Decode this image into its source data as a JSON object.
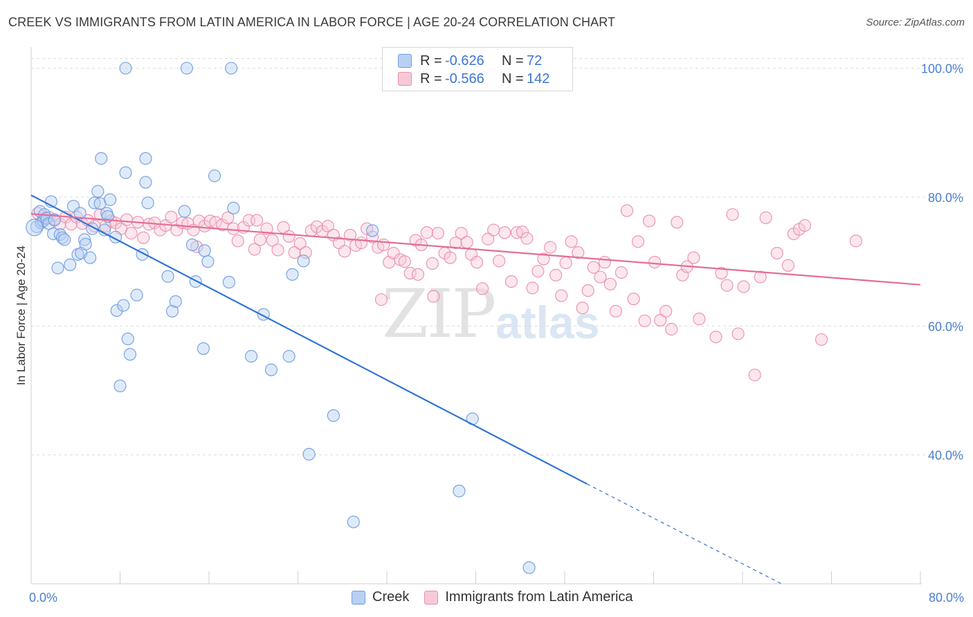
{
  "title": "CREEK VS IMMIGRANTS FROM LATIN AMERICA IN LABOR FORCE | AGE 20-24 CORRELATION CHART",
  "source": "Source: ZipAtlas.com",
  "watermark": {
    "zip": "ZIP",
    "atlas": "atlas"
  },
  "colors": {
    "creek": "#6f9de3",
    "creek_fill": "#b9d0f2",
    "latin": "#ea8fac",
    "latin_fill": "#f7c9d8",
    "trend_creek": "#2f72d6",
    "trend_latin": "#e36d97",
    "accent_text": "#3b74d6"
  },
  "legend": {
    "rows": [
      {
        "series": "Creek",
        "r_label": "R =",
        "r_value": "-0.626",
        "n_label": "N =",
        "n_value": "72"
      },
      {
        "series": "Immigrants from Latin America",
        "r_label": "R =",
        "r_value": "-0.566",
        "n_label": "N =",
        "n_value": "142"
      }
    ]
  },
  "bottom_legend": [
    "Creek",
    "Immigrants from Latin America"
  ],
  "chart_data": {
    "type": "scatter",
    "title": "CREEK VS IMMIGRANTS FROM LATIN AMERICA IN LABOR FORCE | AGE 20-24 CORRELATION CHART",
    "xlabel": "",
    "ylabel": "In Labor Force | Age 20-24",
    "xlim": [
      0,
      80
    ],
    "ylim": [
      20,
      102
    ],
    "x_tick_labels": [
      "0.0%",
      "80.0%"
    ],
    "y_ticks": [
      40,
      60,
      80,
      100
    ],
    "y_tick_labels": [
      "40.0%",
      "60.0%",
      "80.0%",
      "100.0%"
    ],
    "grid": true,
    "legend_position": "top-center",
    "series": [
      {
        "name": "Creek",
        "points": [
          [
            0.5,
            75.4
          ],
          [
            0.8,
            77.8
          ],
          [
            0.9,
            76.0
          ],
          [
            1.1,
            76.3
          ],
          [
            1.2,
            77.3
          ],
          [
            1.4,
            76.7
          ],
          [
            1.6,
            75.9
          ],
          [
            1.8,
            79.3
          ],
          [
            2.0,
            74.3
          ],
          [
            2.1,
            76.5
          ],
          [
            2.4,
            69.0
          ],
          [
            2.6,
            74.2
          ],
          [
            2.8,
            73.7
          ],
          [
            3.0,
            73.4
          ],
          [
            3.5,
            69.5
          ],
          [
            3.8,
            78.6
          ],
          [
            4.2,
            71.1
          ],
          [
            4.4,
            77.5
          ],
          [
            4.5,
            71.3
          ],
          [
            4.8,
            73.4
          ],
          [
            4.9,
            72.7
          ],
          [
            5.3,
            70.6
          ],
          [
            5.5,
            75.1
          ],
          [
            5.7,
            79.1
          ],
          [
            6.0,
            80.9
          ],
          [
            6.2,
            79.0
          ],
          [
            6.3,
            86.0
          ],
          [
            6.6,
            74.9
          ],
          [
            6.8,
            77.5
          ],
          [
            6.9,
            77.0
          ],
          [
            7.1,
            79.6
          ],
          [
            7.6,
            73.8
          ],
          [
            7.7,
            62.4
          ],
          [
            8.0,
            50.7
          ],
          [
            8.3,
            63.2
          ],
          [
            8.5,
            83.8
          ],
          [
            8.7,
            58.0
          ],
          [
            8.9,
            55.6
          ],
          [
            9.5,
            64.8
          ],
          [
            10.0,
            71.1
          ],
          [
            10.3,
            86.0
          ],
          [
            10.3,
            82.3
          ],
          [
            10.5,
            79.1
          ],
          [
            12.3,
            67.7
          ],
          [
            12.7,
            62.3
          ],
          [
            13.0,
            63.8
          ],
          [
            13.8,
            77.8
          ],
          [
            14.5,
            72.6
          ],
          [
            14.8,
            66.9
          ],
          [
            15.5,
            56.5
          ],
          [
            15.6,
            71.7
          ],
          [
            15.9,
            70.0
          ],
          [
            16.5,
            83.3
          ],
          [
            17.8,
            66.8
          ],
          [
            18.2,
            78.3
          ],
          [
            19.8,
            55.3
          ],
          [
            20.9,
            61.8
          ],
          [
            21.6,
            53.2
          ],
          [
            23.2,
            55.3
          ],
          [
            23.5,
            68.0
          ],
          [
            24.5,
            70.1
          ],
          [
            25.0,
            40.1
          ],
          [
            27.2,
            46.1
          ],
          [
            29.0,
            29.6
          ],
          [
            30.7,
            74.8
          ],
          [
            38.5,
            34.4
          ],
          [
            39.7,
            45.6
          ],
          [
            44.8,
            22.5
          ],
          [
            8.5,
            100
          ],
          [
            14.0,
            100
          ],
          [
            18.0,
            100
          ],
          [
            0.3,
            75.3
          ]
        ]
      },
      {
        "name": "Immigrants from Latin America",
        "points": [
          [
            0.6,
            77.5
          ],
          [
            1.0,
            76.2
          ],
          [
            1.3,
            76.8
          ],
          [
            1.6,
            76.9
          ],
          [
            2.1,
            76.4
          ],
          [
            2.6,
            75.8
          ],
          [
            3.1,
            76.9
          ],
          [
            3.6,
            75.8
          ],
          [
            4.1,
            76.9
          ],
          [
            4.6,
            75.9
          ],
          [
            5.1,
            76.4
          ],
          [
            5.7,
            75.5
          ],
          [
            6.2,
            77.3
          ],
          [
            6.7,
            75.5
          ],
          [
            7.2,
            76.3
          ],
          [
            7.6,
            76.0
          ],
          [
            8.1,
            75.1
          ],
          [
            8.6,
            76.5
          ],
          [
            9.0,
            74.4
          ],
          [
            9.6,
            76.1
          ],
          [
            10.1,
            73.7
          ],
          [
            10.6,
            75.8
          ],
          [
            11.1,
            76.0
          ],
          [
            11.6,
            74.9
          ],
          [
            12.1,
            75.6
          ],
          [
            12.6,
            76.9
          ],
          [
            13.1,
            74.9
          ],
          [
            13.6,
            76.0
          ],
          [
            14.1,
            75.9
          ],
          [
            14.6,
            74.9
          ],
          [
            15.1,
            76.3
          ],
          [
            15.6,
            75.5
          ],
          [
            16.1,
            76.3
          ],
          [
            16.6,
            76.1
          ],
          [
            17.2,
            75.7
          ],
          [
            17.7,
            76.8
          ],
          [
            18.2,
            75.1
          ],
          [
            18.6,
            73.2
          ],
          [
            19.1,
            75.3
          ],
          [
            19.6,
            76.4
          ],
          [
            20.1,
            71.9
          ],
          [
            20.6,
            73.4
          ],
          [
            21.2,
            75.1
          ],
          [
            21.7,
            73.3
          ],
          [
            22.2,
            71.8
          ],
          [
            22.7,
            75.3
          ],
          [
            23.2,
            73.9
          ],
          [
            23.7,
            71.4
          ],
          [
            24.2,
            72.8
          ],
          [
            24.7,
            71.4
          ],
          [
            25.2,
            74.8
          ],
          [
            25.7,
            75.4
          ],
          [
            26.2,
            74.7
          ],
          [
            26.7,
            75.5
          ],
          [
            27.2,
            74.1
          ],
          [
            27.7,
            72.9
          ],
          [
            28.2,
            71.6
          ],
          [
            28.7,
            74.1
          ],
          [
            29.2,
            72.5
          ],
          [
            29.7,
            72.9
          ],
          [
            30.2,
            75.1
          ],
          [
            30.7,
            73.8
          ],
          [
            31.2,
            72.2
          ],
          [
            31.7,
            72.6
          ],
          [
            32.2,
            69.9
          ],
          [
            32.6,
            71.3
          ],
          [
            33.2,
            70.3
          ],
          [
            33.6,
            70.0
          ],
          [
            34.1,
            68.2
          ],
          [
            34.6,
            73.3
          ],
          [
            35.1,
            72.6
          ],
          [
            35.6,
            74.5
          ],
          [
            36.1,
            69.7
          ],
          [
            36.6,
            74.4
          ],
          [
            37.2,
            71.3
          ],
          [
            37.7,
            70.6
          ],
          [
            38.2,
            72.9
          ],
          [
            38.7,
            74.4
          ],
          [
            39.2,
            73.0
          ],
          [
            39.6,
            71.1
          ],
          [
            40.1,
            69.9
          ],
          [
            40.6,
            65.8
          ],
          [
            41.1,
            73.5
          ],
          [
            41.6,
            74.9
          ],
          [
            42.1,
            70.1
          ],
          [
            42.6,
            74.5
          ],
          [
            43.2,
            66.9
          ],
          [
            43.7,
            74.5
          ],
          [
            44.2,
            74.6
          ],
          [
            44.6,
            73.6
          ],
          [
            45.1,
            65.9
          ],
          [
            45.6,
            68.5
          ],
          [
            46.1,
            70.4
          ],
          [
            46.7,
            72.2
          ],
          [
            47.2,
            67.9
          ],
          [
            47.7,
            64.7
          ],
          [
            48.1,
            69.8
          ],
          [
            48.6,
            73.1
          ],
          [
            49.2,
            71.4
          ],
          [
            49.6,
            62.8
          ],
          [
            50.1,
            65.5
          ],
          [
            50.6,
            69.1
          ],
          [
            51.2,
            67.6
          ],
          [
            51.6,
            69.9
          ],
          [
            52.1,
            66.5
          ],
          [
            52.6,
            62.3
          ],
          [
            53.1,
            68.3
          ],
          [
            53.6,
            77.9
          ],
          [
            54.2,
            64.2
          ],
          [
            54.6,
            73.1
          ],
          [
            55.2,
            60.8
          ],
          [
            55.6,
            76.3
          ],
          [
            56.1,
            69.9
          ],
          [
            56.6,
            60.9
          ],
          [
            57.1,
            62.3
          ],
          [
            57.6,
            59.5
          ],
          [
            58.1,
            76.1
          ],
          [
            58.6,
            67.9
          ],
          [
            59.0,
            69.2
          ],
          [
            59.6,
            70.6
          ],
          [
            60.1,
            61.1
          ],
          [
            61.6,
            58.3
          ],
          [
            62.1,
            68.2
          ],
          [
            62.6,
            66.3
          ],
          [
            63.1,
            77.3
          ],
          [
            63.6,
            58.8
          ],
          [
            64.1,
            66.1
          ],
          [
            65.1,
            52.4
          ],
          [
            65.6,
            67.6
          ],
          [
            66.1,
            76.8
          ],
          [
            67.1,
            71.3
          ],
          [
            68.1,
            69.4
          ],
          [
            68.6,
            74.3
          ],
          [
            69.1,
            75.0
          ],
          [
            69.6,
            75.6
          ],
          [
            71.1,
            57.9
          ],
          [
            74.2,
            73.2
          ],
          [
            31.5,
            64.1
          ],
          [
            36.2,
            64.6
          ],
          [
            34.8,
            68.0
          ],
          [
            14.9,
            72.3
          ],
          [
            20.3,
            76.4
          ]
        ]
      }
    ],
    "trendlines": [
      {
        "series": "Creek",
        "x": [
          0,
          50
        ],
        "y": [
          80.3,
          35.5
        ],
        "dashed_extension_to": [
          67.5,
          20
        ]
      },
      {
        "series": "Immigrants from Latin America",
        "x": [
          0,
          80
        ],
        "y": [
          77.4,
          66.4
        ]
      }
    ]
  }
}
